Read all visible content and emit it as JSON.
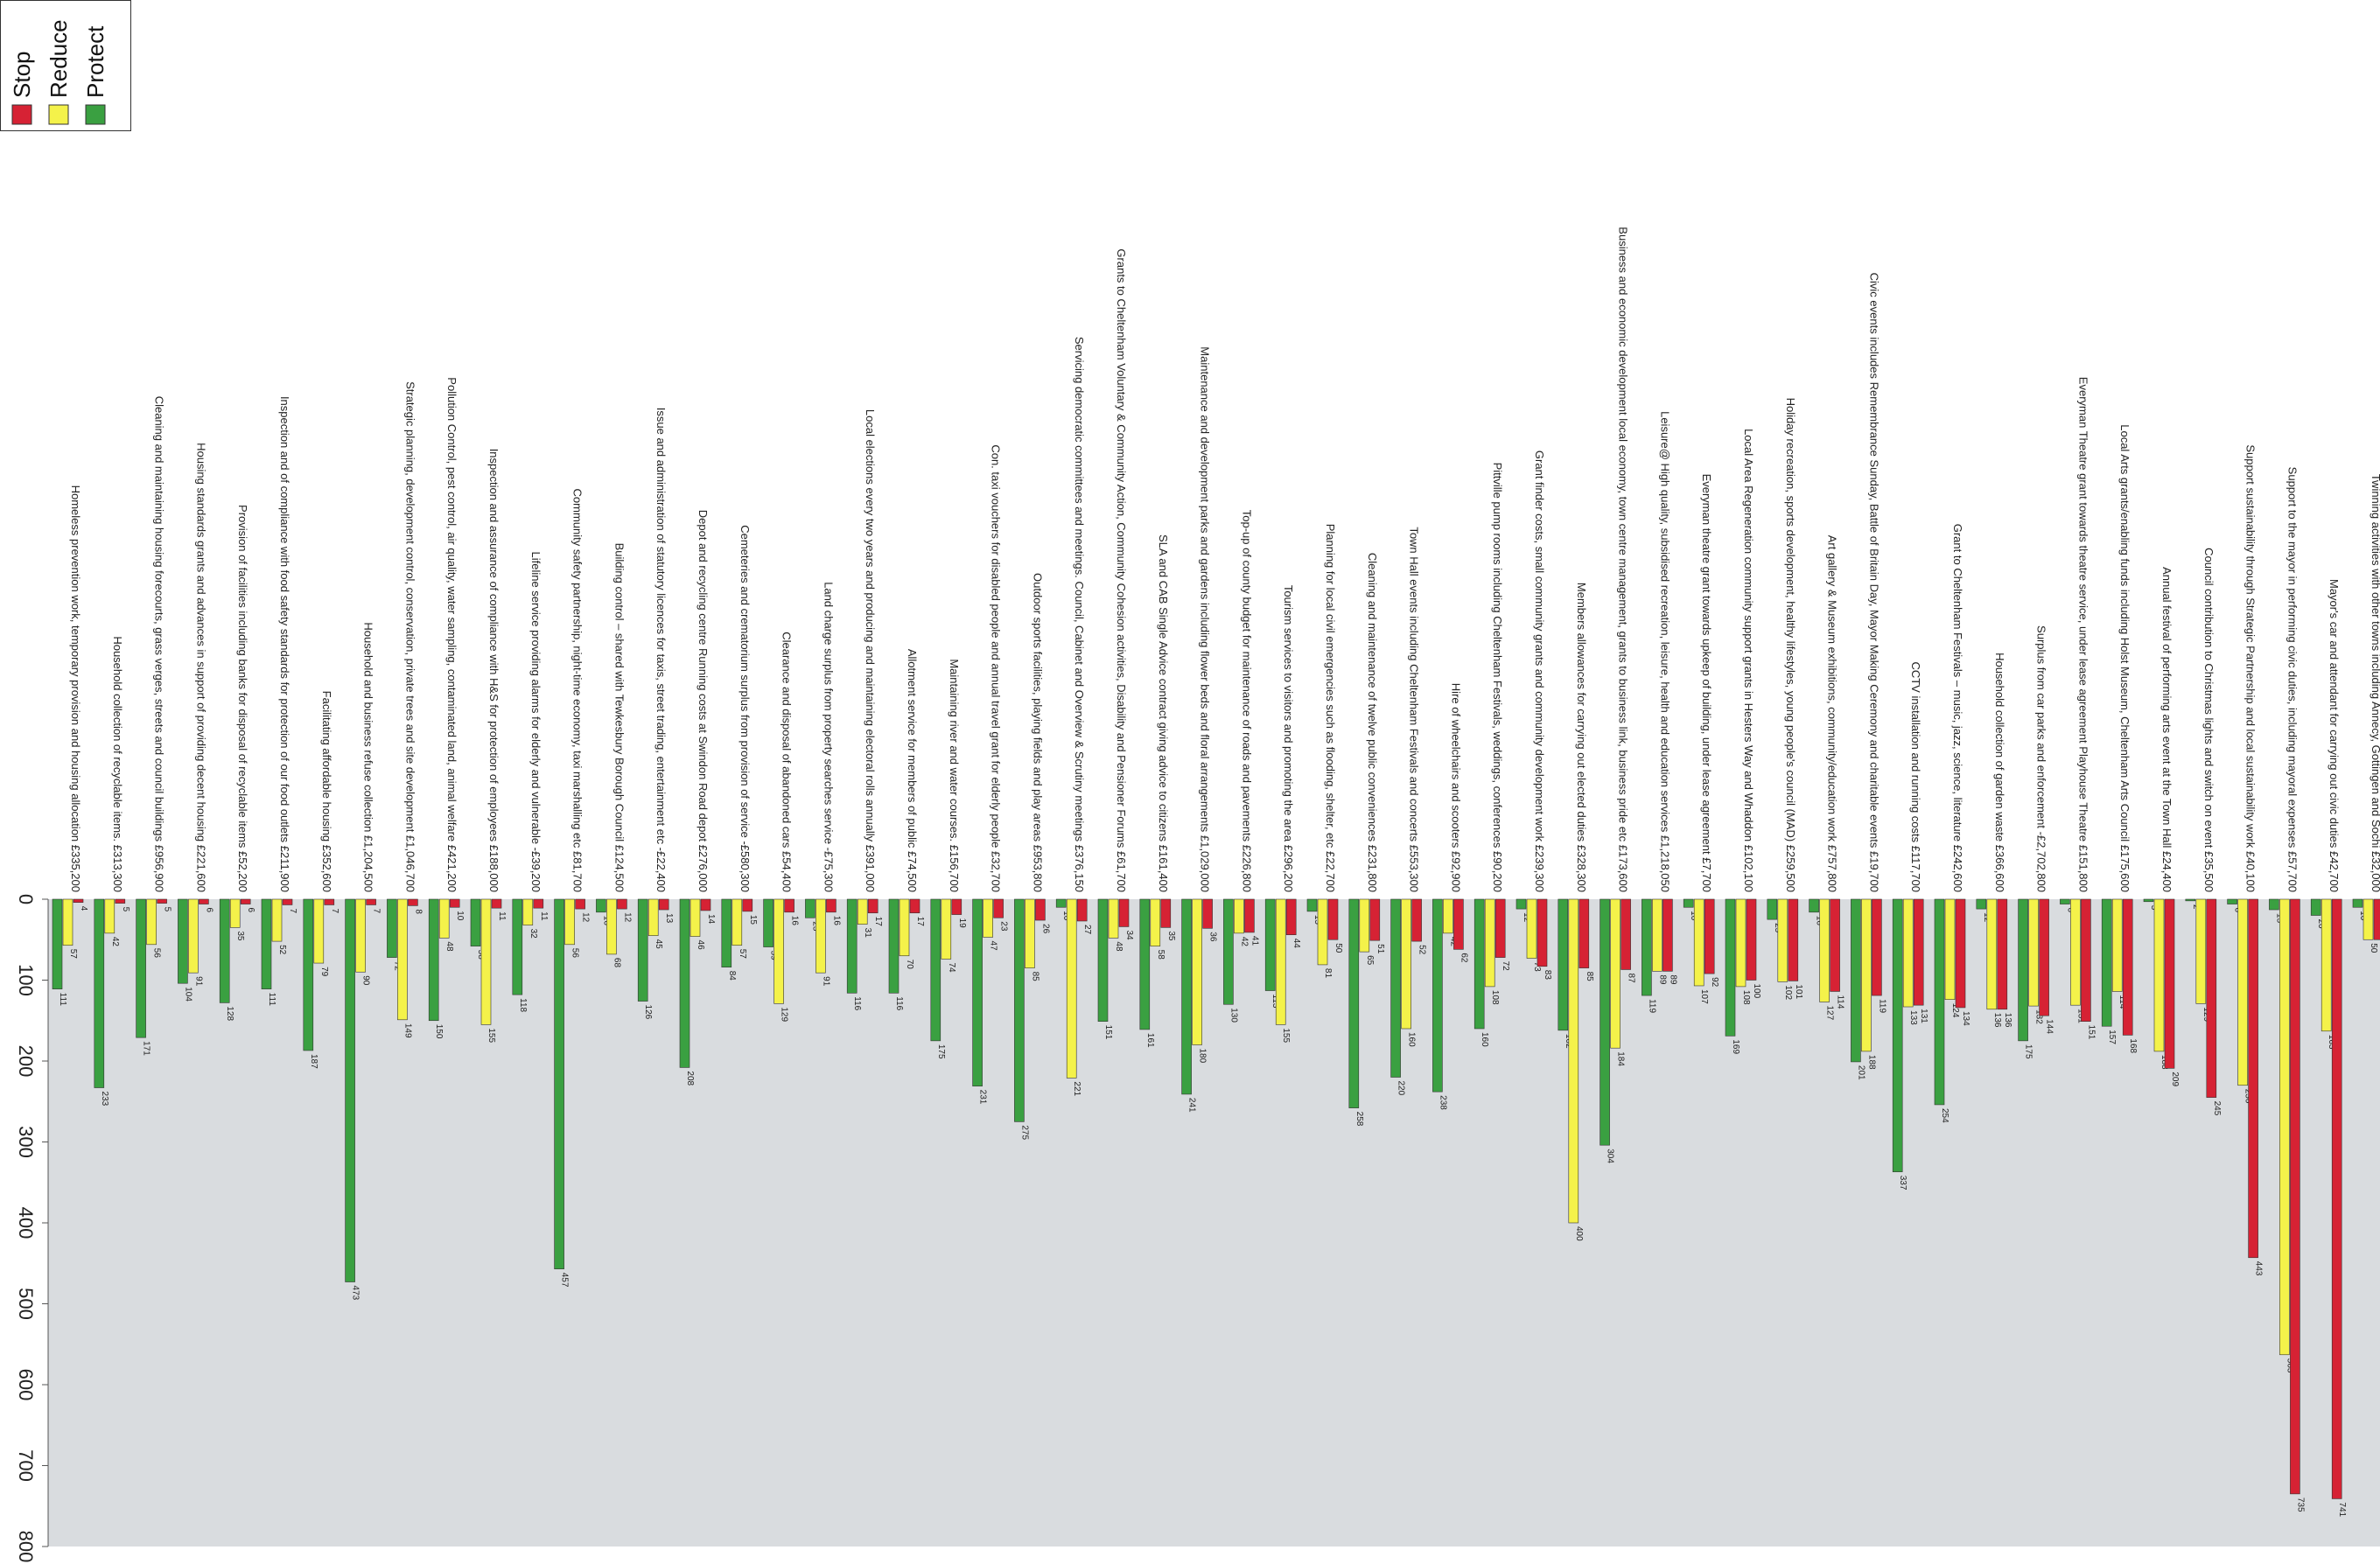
{
  "chart_data": {
    "type": "bar",
    "orientation": "rotated-page",
    "ylim": [
      0,
      800
    ],
    "ticks": [
      "0",
      "100",
      "200",
      "300",
      "400",
      "500",
      "600",
      "700",
      "800"
    ],
    "legend": [
      {
        "name": "Stop",
        "color": "#d62234"
      },
      {
        "name": "Reduce",
        "color": "#f4f24a"
      },
      {
        "name": "Protect",
        "color": "#3aa041"
      }
    ],
    "categories": [
      "Homeless prevention work, temporary provision and housing allocation £335,200",
      "Household collection of recyclable items. £313,300",
      "Cleaning and maintaining housing forecourts, grass verges, streets and council buildings £956,900",
      "Housing standards grants and advances in support of providing decent housing £221,600",
      "Provision of facilities including banks for disposal of recyclable items £52,200",
      "Inspection and of compliance with food safety standards for protection of our food outlets £211,900",
      "Facilitating affordable housing £352,600",
      "Household and business refuse collection £1,204,500",
      "Strategic planning, development control, conservation, private trees and site development £1,046,700",
      "Pollution Control, pest control, air quality, water sampling, contaminated land, animal welfare £421,200",
      "Inspection and assurance of compliance with H&S for protection of employees £188,000",
      "Lifeline service providing alarms for elderly and vulnerable -£39,200",
      "Community safety partnership, night-time economy, taxi marshalling etc £81,700",
      "Building control – shared with Tewkesbury Borough Council £124,500",
      "Issue and administration of statutory licences for taxis, street trading, entertainment etc -£22,400",
      "Depot and recycling centre Running costs at Swindon Road depot £276,000",
      "Cemeteries and crematorium surplus from provision of service -£580,300",
      "Clearance and disposal of abandoned cars £54,400",
      "Land charge surplus from property searches service -£75,300",
      "Local elections every two years and producing and maintaining electoral rolls annually £391,000",
      "Allotment service for members of public £74,500",
      "Maintaining river and water courses. £156,700",
      "Con. taxi vouchers for disabled people and annual travel grant for elderly people £32,700",
      "Outdoor sports facilities, playing fields and play areas £953,800",
      "Servicing democratic committees and meetings. Council, Cabinet and Overview & Scrutiny meetings £376,150",
      "Grants to Cheltenham Voluntary & Community Action, Community Cohesion activities, Disability and Pensioner Forums £61,700",
      "SLA and CAB Single Advice contract giving advice to citizens £161,400",
      "Maintenance and development parks and gardens including flower beds and floral arrangements £1,029,000",
      "Top-up of county budget for maintenance of roads and pavements £226,800",
      "Tourism services to visitors and promoting the area £296,200",
      "Planning for local civil emergencies such as flooding, shelter, etc £22,700",
      "Cleaning and maintenance of twelve public conveniences £231,800",
      "Town Hall events including Cheltenham Festivals and concerts £553,300",
      "Hire of wheelchairs and scooters £92,900",
      "Pittville pump rooms including Cheltenham Festivals, weddings, conferences £90,200",
      "Grant finder costs, small community grants and community development work £239,300",
      "Members allowances for carrying out elected duties £328,300",
      "Business and economic development local economy, town centre management, grants to business link, business pride etc £173,600",
      "Leisure@ High quality, subsidised recreation, leisure, health and education services £1,218,050",
      "Everyman theatre grant towards upkeep of building, under lease agreement £7,700",
      "Local Area Regeneration community support grants in Hesters Way and Whaddon £102,100",
      "Holiday recreation, sports development, healthy lifestyles, young people's council (MAD) £259,500",
      "Art gallery & Museum exhibitions, community/education work £757,800",
      "Civic events includes Remembrance Sunday, Battle of Britain Day, Mayor Making Ceremony and charitable events £19,700",
      "CCTV installation and running costs £117,700",
      "Grant to Cheltenham Festivals – music, jazz, science, literature £242,600",
      "Household collection of garden waste £366,600",
      "Surplus from car parks and enforcement -£2,702,800",
      "Everyman Theatre grant towards theatre service, under lease agreement Playhouse Theatre £151,800",
      "Local Arts grants/enabling funds including Holst Museum, Cheltenham Arts Council £175,600",
      "Annual festival of performing arts event at the Town Hall £24,400",
      "Council contribution to Christmas lights and switch on event £35,500",
      "Support sustainability through Strategic Partnership and local sustainability work £40,100",
      "Support to the mayor in performing civic duties, including mayoral expenses £57,700",
      "Mayor's car and attendant for carrying out civic duties £42,700",
      "Twinning activities with other towns including Annecy, Gottingen and Sochi £32,000"
    ],
    "series": [
      {
        "name": "Protect",
        "values": [
          111,
          233,
          171,
          104,
          128,
          111,
          187,
          473,
          72,
          150,
          58,
          118,
          457,
          16,
          126,
          208,
          84,
          59,
          23,
          116,
          116,
          175,
          231,
          275,
          10,
          151,
          161,
          241,
          130,
          113,
          15,
          258,
          220,
          238,
          160,
          12,
          162,
          304,
          119,
          10,
          169,
          25,
          16,
          201,
          337,
          254,
          12,
          175,
          6,
          157,
          3,
          2,
          6,
          13,
          20,
          10
        ]
      },
      {
        "name": "Reduce",
        "values": [
          57,
          42,
          56,
          91,
          35,
          52,
          79,
          90,
          149,
          48,
          155,
          32,
          56,
          68,
          45,
          46,
          57,
          129,
          91,
          31,
          70,
          74,
          47,
          85,
          221,
          48,
          58,
          180,
          42,
          155,
          81,
          65,
          160,
          42,
          108,
          73,
          400,
          184,
          89,
          107,
          108,
          102,
          127,
          188,
          133,
          124,
          136,
          132,
          131,
          114,
          188,
          129,
          230,
          563,
          163,
          50
        ]
      },
      {
        "name": "Stop",
        "values": [
          4,
          5,
          5,
          6,
          6,
          7,
          7,
          7,
          8,
          10,
          11,
          11,
          12,
          12,
          13,
          14,
          15,
          16,
          16,
          17,
          17,
          19,
          23,
          26,
          27,
          34,
          35,
          36,
          41,
          44,
          50,
          51,
          52,
          62,
          72,
          83,
          85,
          87,
          89,
          92,
          100,
          101,
          114,
          119,
          131,
          134,
          136,
          144,
          151,
          168,
          209,
          245,
          443,
          735,
          741,
          50
        ]
      }
    ]
  }
}
